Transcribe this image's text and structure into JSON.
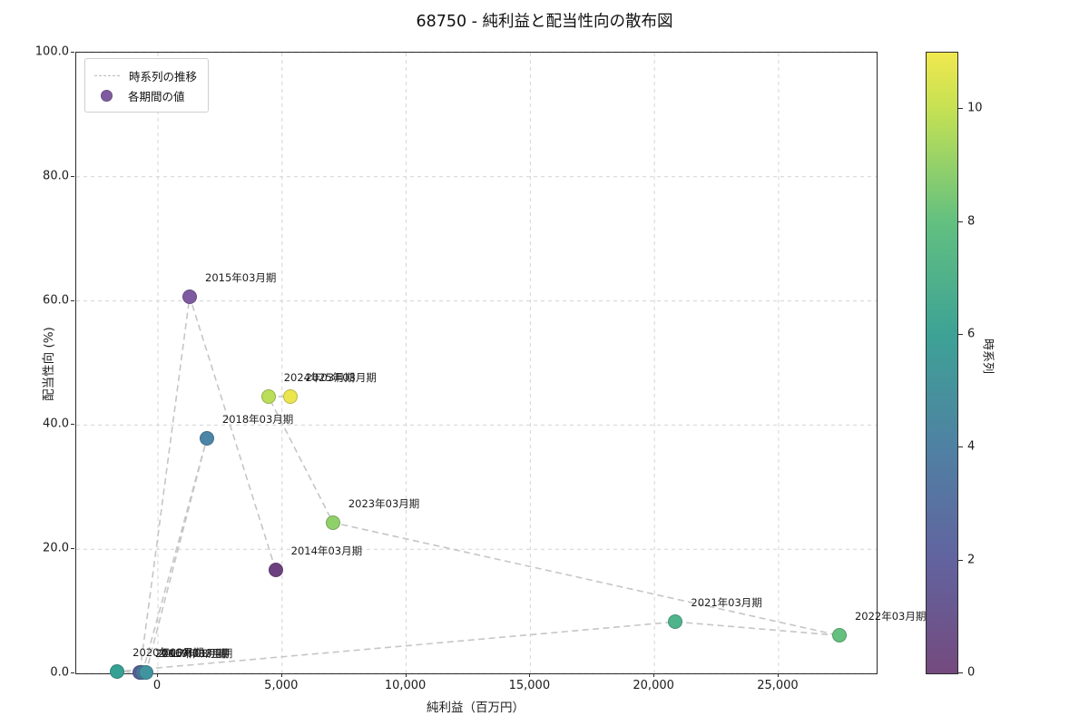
{
  "figure": {
    "title": "68750 - 純利益と配当性向の散布図"
  },
  "legend": {
    "items": [
      {
        "label": "時系列の推移",
        "type": "dashed-line"
      },
      {
        "label": "各期間の値",
        "type": "marker",
        "color": "#7e5ba0"
      }
    ]
  },
  "chart_data": {
    "type": "scatter",
    "title": "68750 - 純利益と配当性向の散布図",
    "xlabel": "純利益（百万円）",
    "ylabel": "配当性向 (%)",
    "xlim": [
      -3290,
      28950
    ],
    "ylim": [
      0,
      100
    ],
    "grid": true,
    "legend_position": "upper-left",
    "xticks": {
      "values": [
        0,
        5000,
        10000,
        15000,
        20000,
        25000
      ],
      "labels": [
        "0",
        "5,000",
        "10,000",
        "15,000",
        "20,000",
        "25,000"
      ]
    },
    "yticks": {
      "values": [
        0,
        20,
        40,
        60,
        80,
        100
      ],
      "labels": [
        "0.0",
        "20.0",
        "40.0",
        "60.0",
        "80.0",
        "100.0"
      ]
    },
    "points": [
      {
        "label": "2014年03月期",
        "x": 4740,
        "y": 16.7,
        "t": 0,
        "color": "#6d4180"
      },
      {
        "label": "2015年03月期",
        "x": 1280,
        "y": 60.7,
        "t": 1,
        "color": "#7e5ba0"
      },
      {
        "label": "2016年03月期",
        "x": -730,
        "y": 0.1,
        "t": 2,
        "color": "#56619b"
      },
      {
        "label": "2017年03月期",
        "x": -620,
        "y": 0.1,
        "t": 3,
        "color": "#4f6f9d"
      },
      {
        "label": "2018年03月期",
        "x": 1970,
        "y": 37.8,
        "t": 4,
        "color": "#4b86a8"
      },
      {
        "label": "2019年03月期",
        "x": -480,
        "y": 0.1,
        "t": 5,
        "color": "#3f94a0"
      },
      {
        "label": "2020年03月期",
        "x": -1640,
        "y": 0.3,
        "t": 6,
        "color": "#35a193"
      },
      {
        "label": "2021年03月期",
        "x": 20850,
        "y": 8.3,
        "t": 7,
        "color": "#4fb48c"
      },
      {
        "label": "2022年03月期",
        "x": 27450,
        "y": 6.1,
        "t": 8,
        "color": "#63c07e"
      },
      {
        "label": "2023年03月期",
        "x": 7050,
        "y": 24.3,
        "t": 9,
        "color": "#8fd06a"
      },
      {
        "label": "2024年03月期",
        "x": 4450,
        "y": 44.6,
        "t": 10,
        "color": "#bade57"
      },
      {
        "label": "2025年03月期",
        "x": 5320,
        "y": 44.6,
        "t": 11,
        "color": "#ece64e"
      }
    ],
    "colorbar": {
      "label": "時系列",
      "vmin": 0,
      "vmax": 11,
      "ticks": [
        0,
        2,
        4,
        6,
        8,
        10
      ],
      "gradient": [
        {
          "v": 0,
          "color": "#744a7e"
        },
        {
          "v": 2,
          "color": "#62639f"
        },
        {
          "v": 4,
          "color": "#4f81a3"
        },
        {
          "v": 6,
          "color": "#3da295"
        },
        {
          "v": 8,
          "color": "#62c080"
        },
        {
          "v": 10,
          "color": "#c5e153"
        },
        {
          "v": 11,
          "color": "#f0e84f"
        }
      ]
    }
  }
}
